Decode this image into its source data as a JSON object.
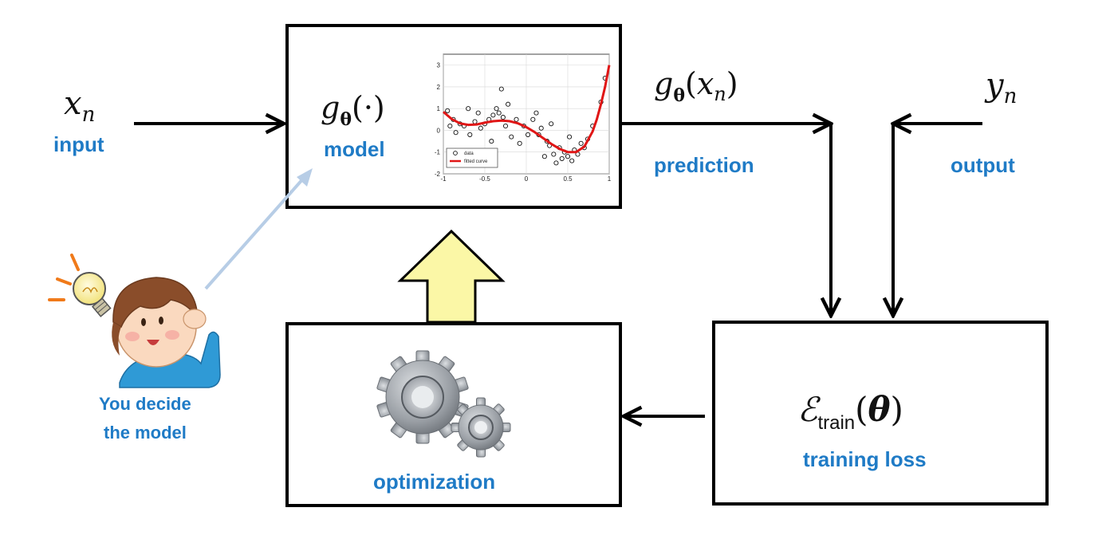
{
  "colors": {
    "label_blue": "#1f7bc6",
    "arrow": "#000000",
    "box_border": "#000000",
    "up_arrow_fill": "#fbf7a6",
    "hint_arrow": "#b7cde6",
    "fit_curve": "#e01616"
  },
  "input": {
    "symbol_var": "x",
    "symbol_sub": "n",
    "label": "input"
  },
  "model": {
    "symbol_g": "g",
    "symbol_theta": "θ",
    "symbol_arg": "(·)",
    "label": "model"
  },
  "prediction": {
    "symbol_g": "g",
    "symbol_theta": "θ",
    "symbol_open": "(",
    "symbol_var": "x",
    "symbol_sub": "n",
    "symbol_close": ")",
    "label": "prediction"
  },
  "output": {
    "symbol_var": "y",
    "symbol_sub": "n",
    "label": "output"
  },
  "loss": {
    "symbol_e": "ℰ",
    "symbol_sub": "train",
    "symbol_open": "(",
    "symbol_theta": "θ",
    "symbol_close": ")",
    "label": "training loss"
  },
  "optimization": {
    "label": "optimization",
    "icon": "gears-icon"
  },
  "person": {
    "icon": "lightbulb-icon",
    "caption_line1": "You decide",
    "caption_line2": "the model"
  },
  "chart_data": {
    "type": "scatter",
    "x_ticks": [
      "-1",
      "-0.5",
      "0",
      "0.5",
      "1"
    ],
    "y_ticks": [
      "3",
      "2",
      "1",
      "0",
      "-1",
      "-2"
    ],
    "xlim": [
      -1,
      1
    ],
    "ylim": [
      -2,
      3.5
    ],
    "legend": [
      "data",
      "fitted curve"
    ],
    "legend_position": "bottom-left",
    "grid": true,
    "series": [
      {
        "name": "data",
        "points": [
          [
            -0.95,
            0.9
          ],
          [
            -0.92,
            0.2
          ],
          [
            -0.88,
            0.5
          ],
          [
            -0.85,
            -0.1
          ],
          [
            -0.8,
            0.3
          ],
          [
            -0.75,
            0.2
          ],
          [
            -0.7,
            1.0
          ],
          [
            -0.68,
            -0.2
          ],
          [
            -0.62,
            0.4
          ],
          [
            -0.58,
            0.8
          ],
          [
            -0.55,
            0.1
          ],
          [
            -0.5,
            0.3
          ],
          [
            -0.45,
            0.5
          ],
          [
            -0.42,
            -0.5
          ],
          [
            -0.4,
            0.7
          ],
          [
            -0.36,
            1.0
          ],
          [
            -0.33,
            0.8
          ],
          [
            -0.3,
            1.9
          ],
          [
            -0.28,
            0.6
          ],
          [
            -0.25,
            0.2
          ],
          [
            -0.22,
            1.2
          ],
          [
            -0.18,
            -0.3
          ],
          [
            -0.12,
            0.5
          ],
          [
            -0.08,
            -0.6
          ],
          [
            -0.03,
            0.2
          ],
          [
            0.02,
            -0.2
          ],
          [
            0.08,
            0.5
          ],
          [
            0.12,
            0.8
          ],
          [
            0.15,
            -0.2
          ],
          [
            0.18,
            0.1
          ],
          [
            0.22,
            -1.2
          ],
          [
            0.25,
            -0.5
          ],
          [
            0.28,
            -0.7
          ],
          [
            0.3,
            0.3
          ],
          [
            0.33,
            -1.1
          ],
          [
            0.36,
            -1.5
          ],
          [
            0.4,
            -0.8
          ],
          [
            0.43,
            -1.3
          ],
          [
            0.46,
            -1.0
          ],
          [
            0.5,
            -1.2
          ],
          [
            0.52,
            -0.3
          ],
          [
            0.55,
            -1.4
          ],
          [
            0.58,
            -0.9
          ],
          [
            0.62,
            -1.1
          ],
          [
            0.66,
            -0.6
          ],
          [
            0.7,
            -0.8
          ],
          [
            0.74,
            -0.4
          ],
          [
            0.8,
            0.2
          ],
          [
            0.9,
            1.3
          ],
          [
            0.95,
            2.4
          ]
        ]
      },
      {
        "name": "fitted curve",
        "x": [
          -1.0,
          -0.9,
          -0.8,
          -0.7,
          -0.6,
          -0.5,
          -0.4,
          -0.3,
          -0.2,
          -0.1,
          0.0,
          0.1,
          0.2,
          0.3,
          0.4,
          0.5,
          0.6,
          0.7,
          0.8,
          0.85,
          0.9,
          0.95,
          1.0
        ],
        "y": [
          0.85,
          0.52,
          0.32,
          0.25,
          0.27,
          0.35,
          0.42,
          0.45,
          0.42,
          0.32,
          0.15,
          -0.08,
          -0.35,
          -0.62,
          -0.85,
          -1.0,
          -1.0,
          -0.75,
          -0.05,
          0.5,
          1.2,
          2.0,
          3.0
        ]
      }
    ]
  }
}
